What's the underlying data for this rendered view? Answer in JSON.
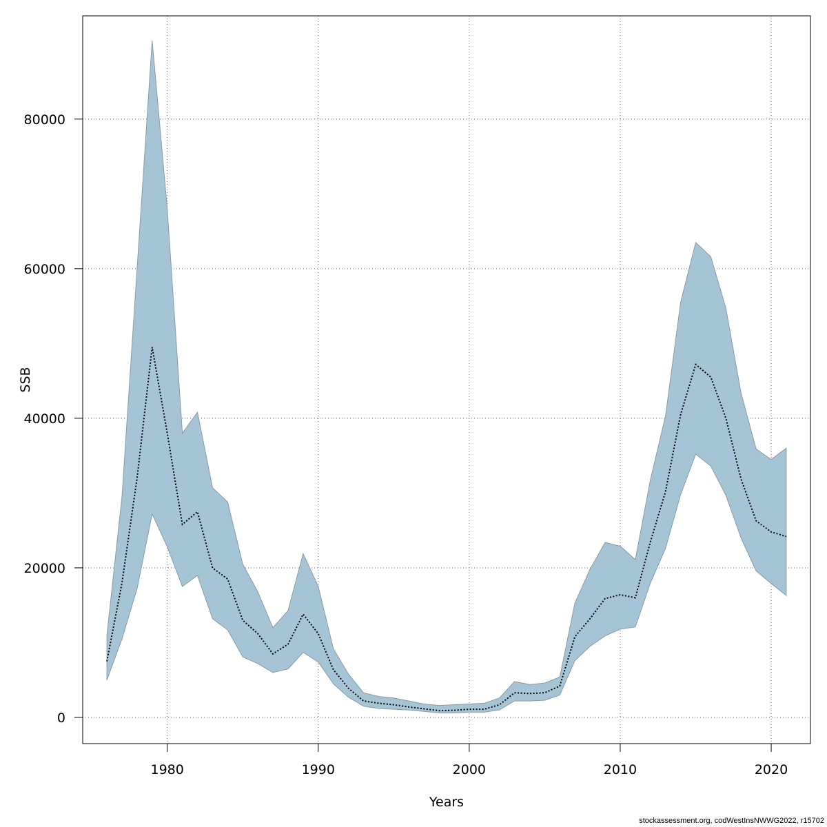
{
  "chart_data": {
    "type": "area",
    "xlabel": "Years",
    "ylabel": "SSB",
    "xlim": [
      1974.4,
      2022.6
    ],
    "ylim": [
      -3500,
      93800
    ],
    "x_ticks": [
      1980,
      1990,
      2000,
      2010,
      2020
    ],
    "y_ticks": [
      0,
      20000,
      40000,
      60000,
      80000
    ],
    "grid": true,
    "colors": {
      "band_fill": "#a5c5d6",
      "band_stroke": "#8a9aa3",
      "estimate_line": "#000000",
      "grid": "#666666",
      "frame": "#000000"
    },
    "x": [
      1976,
      1977,
      1978,
      1979,
      1980,
      1981,
      1982,
      1983,
      1984,
      1985,
      1986,
      1987,
      1988,
      1989,
      1990,
      1991,
      1992,
      1993,
      1994,
      1995,
      1996,
      1997,
      1998,
      1999,
      2000,
      2001,
      2002,
      2003,
      2004,
      2005,
      2006,
      2007,
      2008,
      2009,
      2010,
      2011,
      2012,
      2013,
      2014,
      2015,
      2016,
      2017,
      2018,
      2019,
      2020,
      2021
    ],
    "series": [
      {
        "role": "estimate",
        "values": [
          7500,
          18000,
          32000,
          49500,
          38000,
          25800,
          27500,
          20000,
          18500,
          13000,
          11200,
          8500,
          9800,
          13800,
          11200,
          6400,
          3900,
          2200,
          1900,
          1700,
          1400,
          1150,
          900,
          950,
          1100,
          1100,
          1700,
          3300,
          3200,
          3300,
          4200,
          10800,
          13200,
          15900,
          16400,
          16000,
          23500,
          30200,
          40500,
          47200,
          45500,
          40000,
          31900,
          26300,
          24800,
          24200
        ]
      },
      {
        "role": "upper",
        "values": [
          11000,
          29500,
          60000,
          90500,
          68000,
          38000,
          40800,
          30700,
          28800,
          20500,
          16800,
          12000,
          14300,
          21900,
          17500,
          9200,
          5800,
          3300,
          2800,
          2600,
          2200,
          1800,
          1600,
          1700,
          1800,
          1900,
          2600,
          4800,
          4400,
          4600,
          5400,
          15300,
          19800,
          23400,
          22900,
          21100,
          31800,
          40300,
          55500,
          63500,
          61600,
          54700,
          43400,
          35900,
          34500,
          36000
        ]
      },
      {
        "role": "lower",
        "values": [
          5000,
          10500,
          17200,
          27200,
          22800,
          17500,
          19000,
          13200,
          11700,
          8100,
          7200,
          6000,
          6500,
          8700,
          7400,
          4500,
          2700,
          1500,
          1200,
          1100,
          1000,
          800,
          600,
          600,
          700,
          700,
          1000,
          2200,
          2200,
          2300,
          3000,
          7600,
          9500,
          10900,
          11800,
          12100,
          18000,
          22600,
          29800,
          35200,
          33600,
          29700,
          24000,
          19600,
          17900,
          16300
        ]
      }
    ]
  },
  "footer": {
    "note": "stockassessment.org, codWestInsNWWG2022, r15702"
  }
}
